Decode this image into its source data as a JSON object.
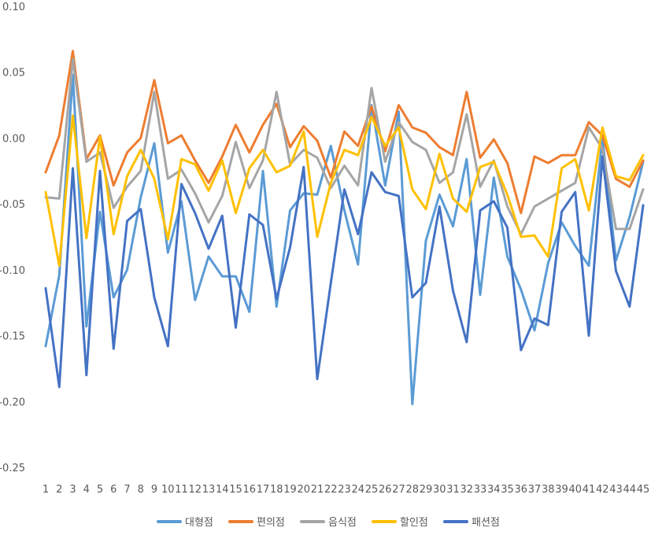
{
  "chart_data": {
    "type": "line",
    "title": "",
    "xlabel": "",
    "ylabel": "",
    "ylim": [
      -0.25,
      0.1
    ],
    "ytick_step": 0.05,
    "yticks": [
      "0.10",
      "0.05",
      "0.00",
      "-0.05",
      "-0.10",
      "-0.15",
      "-0.20",
      "-0.25"
    ],
    "categories": [
      "1",
      "2",
      "3",
      "4",
      "5",
      "6",
      "7",
      "8",
      "9",
      "10",
      "11",
      "12",
      "13",
      "14",
      "15",
      "16",
      "17",
      "18",
      "19",
      "20",
      "21",
      "22",
      "23",
      "24",
      "25",
      "26",
      "27",
      "28",
      "29",
      "30",
      "31",
      "32",
      "33",
      "34",
      "35",
      "36",
      "37",
      "38",
      "39",
      "40",
      "41",
      "42",
      "43",
      "44",
      "45"
    ],
    "grid": false,
    "legend_position": "bottom",
    "series": [
      {
        "name": "대형점",
        "color": "#5b9bd5",
        "values": [
          -0.158,
          -0.104,
          0.048,
          -0.143,
          -0.056,
          -0.121,
          -0.1,
          -0.045,
          -0.004,
          -0.087,
          -0.048,
          -0.123,
          -0.09,
          -0.105,
          -0.105,
          -0.132,
          -0.025,
          -0.128,
          -0.055,
          -0.042,
          -0.043,
          -0.006,
          -0.055,
          -0.096,
          0.025,
          -0.036,
          0.02,
          -0.202,
          -0.078,
          -0.043,
          -0.067,
          -0.016,
          -0.119,
          -0.03,
          -0.09,
          -0.115,
          -0.146,
          -0.095,
          -0.064,
          -0.082,
          -0.097,
          0.0,
          -0.093,
          -0.06,
          -0.018
        ]
      },
      {
        "name": "편의점",
        "color": "#ed7d31",
        "values": [
          -0.026,
          0.002,
          0.066,
          -0.016,
          0.002,
          -0.036,
          -0.011,
          0.0,
          0.044,
          -0.004,
          0.002,
          -0.017,
          -0.034,
          -0.014,
          0.01,
          -0.011,
          0.01,
          0.026,
          -0.007,
          0.009,
          -0.002,
          -0.03,
          0.005,
          -0.006,
          0.024,
          -0.01,
          0.025,
          0.008,
          0.004,
          -0.007,
          -0.013,
          0.035,
          -0.015,
          -0.001,
          -0.019,
          -0.057,
          -0.014,
          -0.019,
          -0.013,
          -0.013,
          0.012,
          0.002,
          -0.031,
          -0.037,
          -0.017
        ]
      },
      {
        "name": "음식점",
        "color": "#a5a5a5",
        "values": [
          -0.045,
          -0.046,
          0.06,
          -0.018,
          -0.011,
          -0.053,
          -0.037,
          -0.025,
          0.035,
          -0.031,
          -0.024,
          -0.042,
          -0.064,
          -0.044,
          -0.003,
          -0.038,
          -0.017,
          0.035,
          -0.02,
          -0.009,
          -0.015,
          -0.038,
          -0.021,
          -0.036,
          0.038,
          -0.018,
          0.012,
          -0.003,
          -0.009,
          -0.034,
          -0.026,
          0.018,
          -0.037,
          -0.017,
          -0.052,
          -0.073,
          -0.052,
          -0.046,
          -0.04,
          -0.034,
          0.008,
          -0.008,
          -0.069,
          -0.069,
          -0.039
        ]
      },
      {
        "name": "할인점",
        "color": "#ffc000",
        "values": [
          -0.041,
          -0.097,
          0.017,
          -0.076,
          0.001,
          -0.073,
          -0.029,
          -0.009,
          -0.031,
          -0.077,
          -0.016,
          -0.02,
          -0.04,
          -0.017,
          -0.057,
          -0.023,
          -0.009,
          -0.026,
          -0.021,
          0.005,
          -0.075,
          -0.034,
          -0.009,
          -0.013,
          0.016,
          -0.006,
          0.008,
          -0.039,
          -0.054,
          -0.012,
          -0.046,
          -0.056,
          -0.022,
          -0.018,
          -0.043,
          -0.075,
          -0.074,
          -0.09,
          -0.023,
          -0.016,
          -0.055,
          0.008,
          -0.029,
          -0.032,
          -0.013
        ]
      },
      {
        "name": "패션점",
        "color": "#4472c4",
        "values": [
          -0.114,
          -0.189,
          -0.023,
          -0.18,
          -0.025,
          -0.16,
          -0.063,
          -0.054,
          -0.121,
          -0.158,
          -0.035,
          -0.057,
          -0.084,
          -0.059,
          -0.144,
          -0.058,
          -0.066,
          -0.122,
          -0.083,
          -0.022,
          -0.183,
          -0.11,
          -0.039,
          -0.073,
          -0.026,
          -0.041,
          -0.044,
          -0.121,
          -0.11,
          -0.052,
          -0.116,
          -0.155,
          -0.055,
          -0.048,
          -0.068,
          -0.161,
          -0.137,
          -0.142,
          -0.056,
          -0.041,
          -0.15,
          -0.014,
          -0.101,
          -0.128,
          -0.051
        ]
      }
    ]
  }
}
